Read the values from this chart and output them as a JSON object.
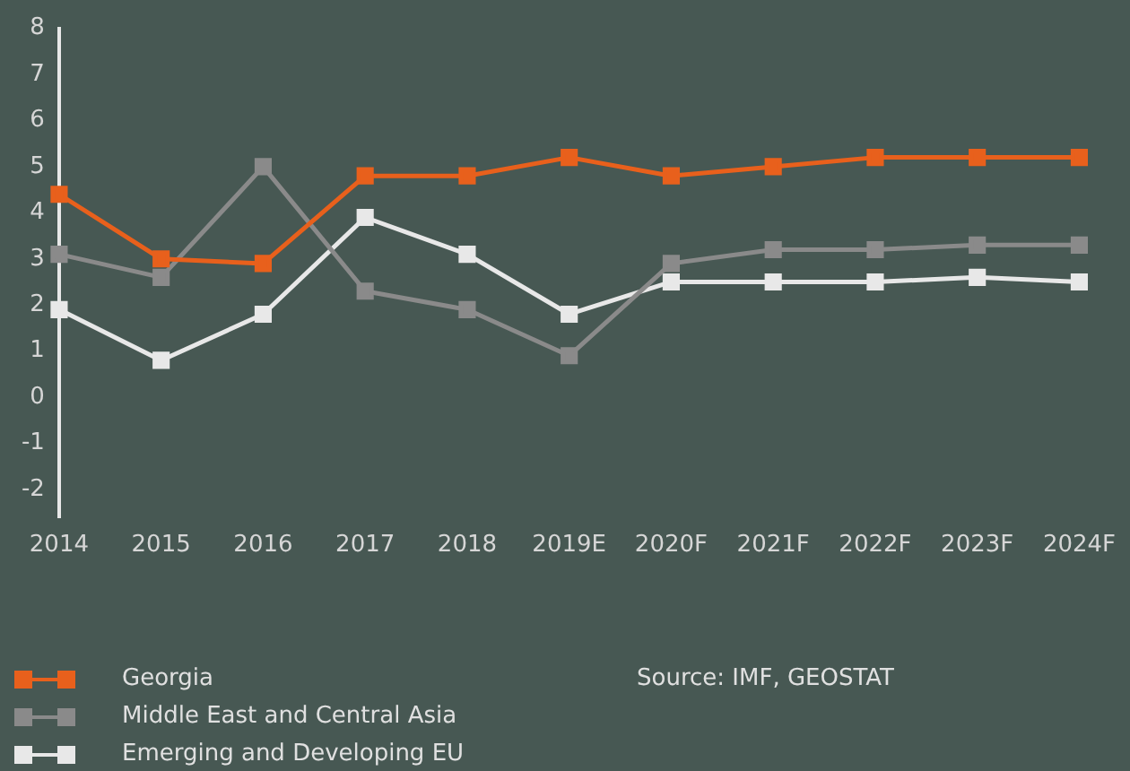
{
  "chart_data": {
    "type": "line",
    "categories": [
      "2014",
      "2015",
      "2016",
      "2017",
      "2018",
      "2019E",
      "2020F",
      "2021F",
      "2022F",
      "2023F",
      "2024F"
    ],
    "series": [
      {
        "name": "Georgia",
        "color": "#e8601c",
        "values": [
          4.4,
          3.0,
          2.9,
          4.8,
          4.8,
          5.2,
          4.8,
          5.0,
          5.2,
          5.2,
          5.2
        ]
      },
      {
        "name": "Middle East and Central Asia",
        "color": "#8a8a8a",
        "values": [
          3.1,
          2.6,
          5.0,
          2.3,
          1.9,
          0.9,
          2.9,
          3.2,
          3.2,
          3.3,
          3.3
        ]
      },
      {
        "name": "Emerging and Developing EU",
        "color": "#e8e8e8",
        "values": [
          1.9,
          0.8,
          1.8,
          3.9,
          3.1,
          1.8,
          2.5,
          2.5,
          2.5,
          2.6,
          2.5
        ]
      }
    ],
    "ylim": [
      -2.6,
      8
    ],
    "yticks": [
      -2,
      -1,
      0,
      1,
      2,
      3,
      4,
      5,
      6,
      7,
      8
    ],
    "grid": false,
    "legend": "bottom left",
    "marker": "square",
    "line_style": "solid",
    "annotations": [
      "Source: IMF, GEOSTAT"
    ]
  }
}
